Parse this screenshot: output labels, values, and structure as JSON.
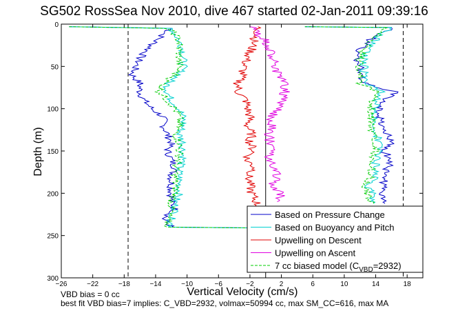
{
  "title": "SG502 RossSea Nov 2010, dive 467 started 02-Jan-2011 09:39:16",
  "footer": {
    "line1": "VBD bias = 0 cc",
    "line2": "best fit VBD bias=7 implies: C_VBD=2932, volmax=50994 cc, max SM_CC=616, max MA"
  },
  "colors": {
    "pressure": "#0000c8",
    "buoyancy": "#00d0d0",
    "descent": "#e00000",
    "ascent": "#e000e0",
    "model": "#00cc00"
  },
  "chart_data": {
    "type": "line",
    "xlabel": "Vertical Velocity (cm/s)",
    "ylabel": "Depth (m)",
    "xlim": [
      -26,
      20
    ],
    "ylim": [
      0,
      300
    ],
    "y_reversed": true,
    "x_ticks": [
      -26,
      -22,
      -18,
      -14,
      -10,
      -6,
      -2,
      2,
      6,
      10,
      14,
      18
    ],
    "y_ticks": [
      0,
      50,
      100,
      150,
      200,
      250,
      300
    ],
    "reference_lines": [
      {
        "style": "dashed",
        "x": -17.5
      },
      {
        "style": "dashed",
        "x": 17.5
      },
      {
        "style": "solid",
        "x": 0
      }
    ],
    "legend_position": "bottom-right",
    "legend": [
      {
        "key": "pressure",
        "label": "Based on Pressure Change",
        "dash": "solid"
      },
      {
        "key": "buoyancy",
        "label": "Based on Buoyancy and Pitch",
        "dash": "solid"
      },
      {
        "key": "descent",
        "label": "Upwelling on Descent",
        "dash": "solid"
      },
      {
        "key": "ascent",
        "label": "Upwelling on Ascent",
        "dash": "solid"
      },
      {
        "key": "model",
        "label": "7 cc biased model (C",
        "sub": "VBD",
        "suffix": "=2932)",
        "dash": "dashed"
      }
    ],
    "series": [
      {
        "key": "pressure",
        "name": "Based on Pressure Change",
        "descent": [
          [
            -25,
            3
          ],
          [
            -12,
            5
          ],
          [
            -13,
            12
          ],
          [
            -14,
            20
          ],
          [
            -15,
            30
          ],
          [
            -16,
            40
          ],
          [
            -16.5,
            50
          ],
          [
            -17,
            60
          ],
          [
            -16,
            70
          ],
          [
            -16,
            80
          ],
          [
            -15.5,
            90
          ],
          [
            -14.5,
            100
          ],
          [
            -13,
            110
          ],
          [
            -13,
            120
          ],
          [
            -12.5,
            130
          ],
          [
            -12,
            140
          ],
          [
            -12.5,
            150
          ],
          [
            -12,
            160
          ],
          [
            -11.5,
            170
          ],
          [
            -12,
            180
          ],
          [
            -12,
            190
          ],
          [
            -12,
            200
          ],
          [
            -12,
            210
          ],
          [
            -11.5,
            220
          ],
          [
            -13,
            230
          ],
          [
            -12,
            240
          ],
          [
            -1,
            241
          ]
        ],
        "ascent": [
          [
            15,
            212
          ],
          [
            14.5,
            200
          ],
          [
            15,
            190
          ],
          [
            15,
            180
          ],
          [
            15.5,
            170
          ],
          [
            16,
            160
          ],
          [
            15,
            150
          ],
          [
            16,
            140
          ],
          [
            15.5,
            130
          ],
          [
            15,
            120
          ],
          [
            14.5,
            110
          ],
          [
            14.5,
            100
          ],
          [
            15,
            90
          ],
          [
            16.5,
            80
          ],
          [
            12.5,
            70
          ],
          [
            12,
            60
          ],
          [
            12,
            50
          ],
          [
            11.5,
            40
          ],
          [
            12,
            30
          ],
          [
            13,
            20
          ],
          [
            15,
            10
          ],
          [
            16,
            4
          ],
          [
            5,
            3
          ]
        ]
      },
      {
        "key": "buoyancy",
        "name": "Based on Buoyancy and Pitch",
        "descent": [
          [
            -25,
            3
          ],
          [
            -12,
            5
          ],
          [
            -11.5,
            12
          ],
          [
            -11,
            20
          ],
          [
            -10.5,
            30
          ],
          [
            -10.5,
            50
          ],
          [
            -11,
            60
          ],
          [
            -12.5,
            70
          ],
          [
            -12.5,
            80
          ],
          [
            -12,
            90
          ],
          [
            -11,
            100
          ],
          [
            -10.5,
            110
          ],
          [
            -10.5,
            120
          ],
          [
            -11,
            130
          ],
          [
            -10.5,
            140
          ],
          [
            -10.5,
            150
          ],
          [
            -10.5,
            160
          ],
          [
            -11,
            170
          ],
          [
            -11,
            180
          ],
          [
            -11,
            190
          ],
          [
            -11,
            200
          ],
          [
            -11.5,
            210
          ],
          [
            -11.5,
            220
          ],
          [
            -12,
            230
          ],
          [
            -12,
            240
          ],
          [
            -2,
            241
          ]
        ],
        "ascent": [
          [
            14,
            212
          ],
          [
            13.5,
            200
          ],
          [
            13,
            190
          ],
          [
            14,
            180
          ],
          [
            14,
            170
          ],
          [
            14,
            160
          ],
          [
            14.5,
            150
          ],
          [
            14.5,
            140
          ],
          [
            14,
            130
          ],
          [
            14,
            120
          ],
          [
            14,
            110
          ],
          [
            14,
            100
          ],
          [
            14,
            90
          ],
          [
            15,
            80
          ],
          [
            12.5,
            70
          ],
          [
            12.5,
            60
          ],
          [
            12.5,
            50
          ],
          [
            12.5,
            40
          ],
          [
            13,
            30
          ],
          [
            14,
            20
          ],
          [
            15,
            10
          ],
          [
            16,
            4
          ],
          [
            5,
            3
          ]
        ]
      },
      {
        "key": "descent",
        "name": "Upwelling on Descent",
        "descent": [
          [
            -1,
            3
          ],
          [
            -1,
            10
          ],
          [
            -1.5,
            20
          ],
          [
            -1.8,
            30
          ],
          [
            -2.3,
            40
          ],
          [
            -2.8,
            50
          ],
          [
            -3,
            60
          ],
          [
            -3.5,
            70
          ],
          [
            -3.5,
            80
          ],
          [
            -2.5,
            90
          ],
          [
            -2.3,
            100
          ],
          [
            -2,
            110
          ],
          [
            -2.3,
            120
          ],
          [
            -1.8,
            130
          ],
          [
            -2,
            140
          ],
          [
            -1.5,
            150
          ],
          [
            -2.5,
            160
          ],
          [
            -1.3,
            170
          ],
          [
            -2.2,
            180
          ],
          [
            -2,
            190
          ],
          [
            -1.8,
            200
          ],
          [
            -1.2,
            210
          ],
          [
            -0.8,
            220
          ],
          [
            -0.6,
            230
          ]
        ]
      },
      {
        "key": "ascent",
        "name": "Upwelling on Ascent",
        "ascent": [
          [
            1.5,
            210
          ],
          [
            2,
            200
          ],
          [
            0.8,
            190
          ],
          [
            1.5,
            180
          ],
          [
            1,
            170
          ],
          [
            0.5,
            160
          ],
          [
            0.6,
            150
          ],
          [
            0.5,
            140
          ],
          [
            0.5,
            130
          ],
          [
            0.8,
            120
          ],
          [
            0.8,
            110
          ],
          [
            1.5,
            100
          ],
          [
            2,
            90
          ],
          [
            2.5,
            80
          ],
          [
            2.5,
            70
          ],
          [
            1.5,
            60
          ],
          [
            1.2,
            50
          ],
          [
            1,
            40
          ],
          [
            0.5,
            30
          ],
          [
            0,
            20
          ],
          [
            -1,
            10
          ],
          [
            -2,
            3
          ]
        ]
      },
      {
        "key": "model",
        "name": "7 cc biased model (CVBD=2932)",
        "descent": [
          [
            -25,
            3
          ],
          [
            -12.5,
            5
          ],
          [
            -11.5,
            12
          ],
          [
            -11,
            20
          ],
          [
            -11,
            30
          ],
          [
            -11,
            50
          ],
          [
            -11.5,
            60
          ],
          [
            -13,
            70
          ],
          [
            -13.5,
            80
          ],
          [
            -12.5,
            90
          ],
          [
            -11.5,
            100
          ],
          [
            -11,
            110
          ],
          [
            -11,
            120
          ],
          [
            -11.5,
            130
          ],
          [
            -11,
            140
          ],
          [
            -11,
            150
          ],
          [
            -11,
            160
          ],
          [
            -11.5,
            170
          ],
          [
            -11.5,
            180
          ],
          [
            -11.5,
            190
          ],
          [
            -11.5,
            200
          ],
          [
            -12,
            210
          ],
          [
            -12,
            220
          ],
          [
            -12.5,
            230
          ],
          [
            -12.5,
            240
          ],
          [
            -2,
            241
          ]
        ],
        "ascent": [
          [
            13.5,
            212
          ],
          [
            13,
            200
          ],
          [
            12.5,
            190
          ],
          [
            13.5,
            180
          ],
          [
            13.5,
            170
          ],
          [
            13.5,
            160
          ],
          [
            14,
            150
          ],
          [
            14,
            140
          ],
          [
            13.5,
            130
          ],
          [
            13.5,
            120
          ],
          [
            13.5,
            110
          ],
          [
            13.5,
            100
          ],
          [
            13.5,
            90
          ],
          [
            14.5,
            80
          ],
          [
            12,
            70
          ],
          [
            12,
            60
          ],
          [
            12,
            50
          ],
          [
            12,
            40
          ],
          [
            12.5,
            30
          ],
          [
            13.5,
            20
          ],
          [
            14.5,
            10
          ],
          [
            15.5,
            4
          ],
          [
            5,
            3
          ]
        ]
      }
    ]
  }
}
